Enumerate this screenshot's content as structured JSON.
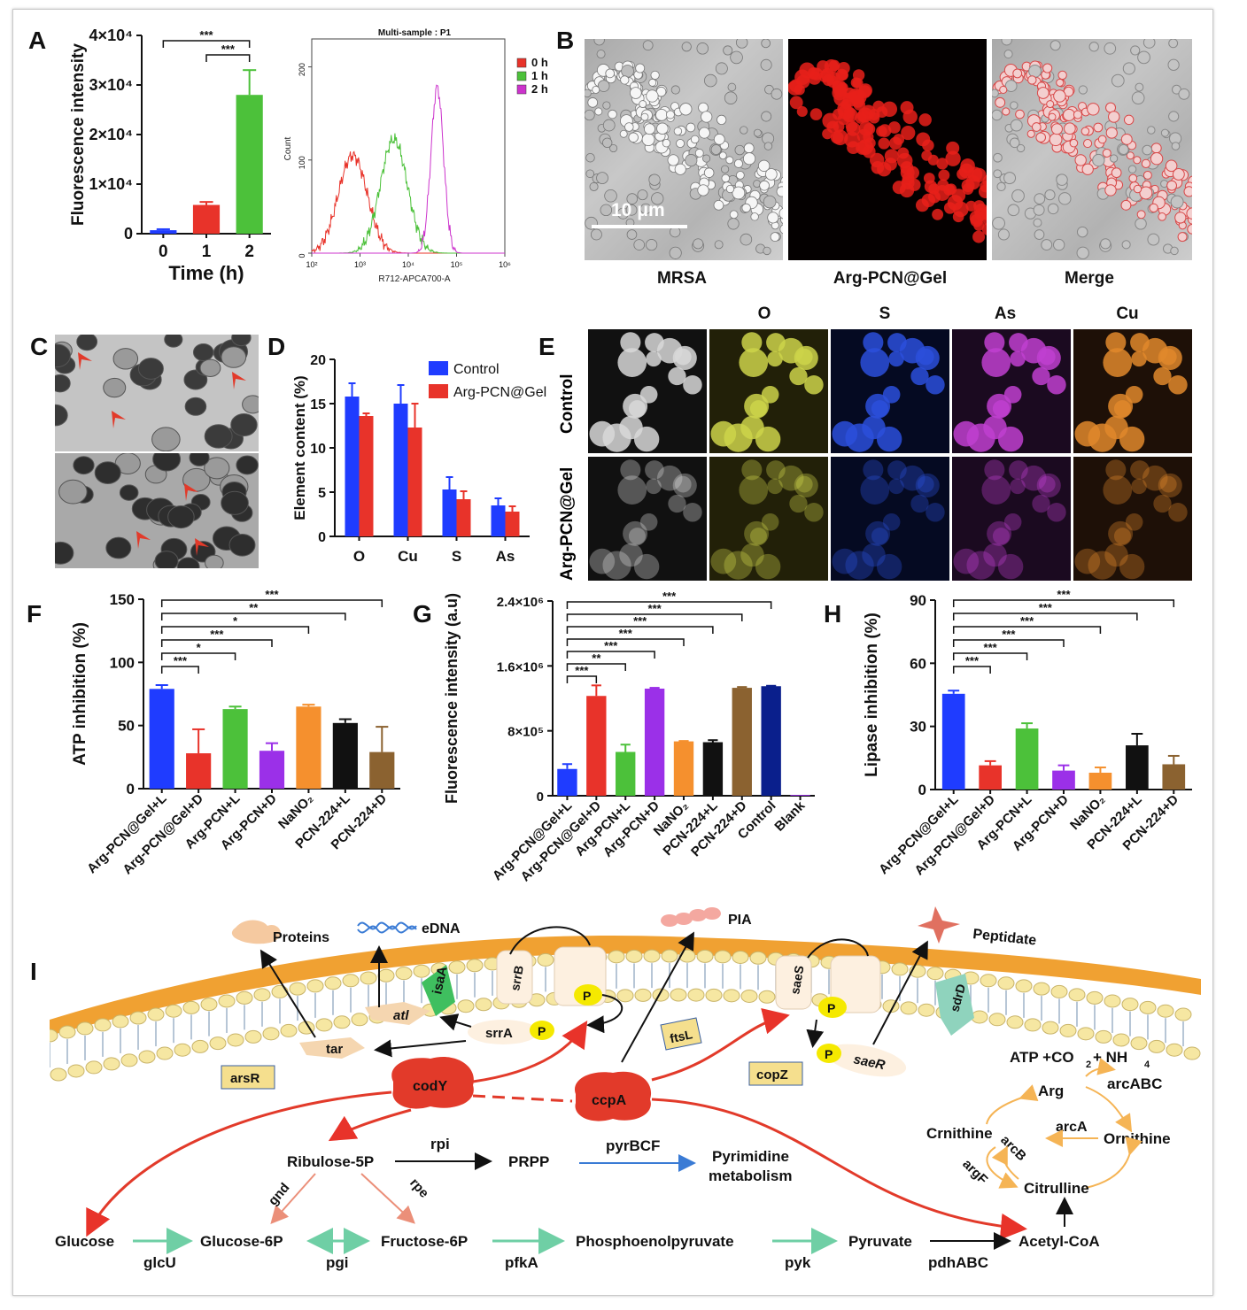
{
  "panels": {
    "A": "A",
    "B": "B",
    "C": "C",
    "D": "D",
    "E": "E",
    "F": "F",
    "G": "G",
    "H": "H",
    "I": "I"
  },
  "panelA_bar": {
    "chart_data": {
      "type": "bar",
      "categories": [
        "0",
        "1",
        "2"
      ],
      "values": [
        700,
        5800,
        28000
      ],
      "errors": [
        200,
        600,
        5000
      ],
      "colors": [
        "#1f3cff",
        "#e8332a",
        "#4cc13a"
      ],
      "ylim": [
        0,
        40000
      ],
      "yticks": [
        "0",
        "1×10⁴",
        "2×10⁴",
        "3×10⁴",
        "4×10⁴"
      ],
      "ylabel": "Fluorescence intensity",
      "xlabel": "Time (h)",
      "significance": [
        "***",
        "***"
      ]
    }
  },
  "panelA_hist": {
    "chart_data": {
      "type": "line",
      "title": "Multi-sample : P1",
      "xlabel": "R712-APCA700-A",
      "ylabel": "Count",
      "xticks": [
        "10²",
        "10³",
        "10⁴",
        "10⁵",
        "10⁶"
      ],
      "yticks": [
        "0",
        "100",
        "200"
      ],
      "series": [
        {
          "name": "0 h",
          "color": "#e8332a",
          "peak_x": "≈7×10²",
          "peak_count": 105
        },
        {
          "name": "1 h",
          "color": "#4cc13a",
          "peak_x": "≈5×10³",
          "peak_count": 122
        },
        {
          "name": "2 h",
          "color": "#cc33cc",
          "peak_x": "≈4×10⁴",
          "peak_count": 178
        }
      ]
    }
  },
  "panelB": {
    "scale_bar": "10 μm",
    "captions": [
      "MRSA",
      "Arg-PCN@Gel",
      "Merge"
    ]
  },
  "panelD": {
    "chart_data": {
      "type": "bar",
      "categories": [
        "O",
        "Cu",
        "S",
        "As"
      ],
      "series": [
        {
          "name": "Control",
          "color": "#1f3cff",
          "values": [
            15.8,
            15.0,
            5.3,
            3.5
          ],
          "errors": [
            1.5,
            2.1,
            1.4,
            0.8
          ]
        },
        {
          "name": "Arg-PCN@Gel",
          "color": "#e8332a",
          "values": [
            13.6,
            12.3,
            4.2,
            2.8
          ],
          "errors": [
            0.3,
            2.7,
            0.9,
            0.6
          ]
        }
      ],
      "ylim": [
        0,
        20
      ],
      "yticks": [
        "0",
        "5",
        "10",
        "15",
        "20"
      ],
      "ylabel": "Element content (%)"
    }
  },
  "panelE": {
    "columns": [
      "O",
      "S",
      "As",
      "Cu"
    ],
    "rows": [
      "Control",
      "Arg-PCN@Gel"
    ]
  },
  "panelF": {
    "chart_data": {
      "type": "bar",
      "categories": [
        "Arg-PCN@Gel+L",
        "Arg-PCN@Gel+D",
        "Arg-PCN+L",
        "Arg-PCN+D",
        "NaNO₂",
        "PCN-224+L",
        "PCN-224+D"
      ],
      "values": [
        79,
        28,
        63,
        30,
        65,
        52,
        29
      ],
      "errors": [
        3,
        19,
        2,
        6,
        1.5,
        3,
        20
      ],
      "colors": [
        "#1f3cff",
        "#e8332a",
        "#4cc13a",
        "#9b30e8",
        "#f5902e",
        "#111111",
        "#8b6230"
      ],
      "ylim": [
        0,
        150
      ],
      "yticks": [
        "0",
        "50",
        "100",
        "150"
      ],
      "ylabel": "ATP inhibition (%)",
      "significance": [
        "***",
        "*",
        "***",
        "*",
        "**",
        "***"
      ]
    }
  },
  "panelG": {
    "chart_data": {
      "type": "bar",
      "categories": [
        "Arg-PCN@Gel+L",
        "Arg-PCN@Gel+D",
        "Arg-PCN+L",
        "Arg-PCN+D",
        "NaNO₂",
        "PCN-224+L",
        "PCN-224+D",
        "Control",
        "Blank"
      ],
      "values": [
        330000,
        1230000,
        540000,
        1320000,
        670000,
        660000,
        1330000,
        1350000,
        10000
      ],
      "errors": [
        60000,
        130000,
        90000,
        10000,
        5000,
        25000,
        10000,
        5000,
        0
      ],
      "colors": [
        "#1f3cff",
        "#e8332a",
        "#4cc13a",
        "#9b30e8",
        "#f5902e",
        "#111111",
        "#8b6230",
        "#0a1f8c",
        "#9b30e8"
      ],
      "ylim": [
        0,
        2400000
      ],
      "yticks": [
        "0",
        "8×10⁵",
        "1.6×10⁶",
        "2.4×10⁶"
      ],
      "ylabel": "Fluorescence intensity (a.u)",
      "significance": [
        "***",
        "**",
        "***",
        "***",
        "***",
        "***",
        "***"
      ]
    }
  },
  "panelH": {
    "chart_data": {
      "type": "bar",
      "categories": [
        "Arg-PCN@Gel+L",
        "Arg-PCN@Gel+D",
        "Arg-PCN+L",
        "Arg-PCN+D",
        "NaNO₂",
        "PCN-224+L",
        "PCN-224+D"
      ],
      "values": [
        45.5,
        11.5,
        29,
        9,
        8,
        21,
        12
      ],
      "errors": [
        1.5,
        2,
        2.5,
        2.5,
        2.5,
        5.5,
        4
      ],
      "colors": [
        "#1f3cff",
        "#e8332a",
        "#4cc13a",
        "#9b30e8",
        "#f5902e",
        "#111111",
        "#8b6230"
      ],
      "ylim": [
        0,
        90
      ],
      "yticks": [
        "0",
        "30",
        "60",
        "90"
      ],
      "ylabel": "Lipase inhibition (%)",
      "significance": [
        "***",
        "***",
        "***",
        "***",
        "***",
        "***"
      ]
    }
  },
  "panelI": {
    "outputs": {
      "proteins": "Proteins",
      "edna": "eDNA",
      "pia": "PIA",
      "peptidate": "Peptidate"
    },
    "membrane": {
      "isaA": "isaA",
      "srrB": "srrB",
      "saeS": "saeS",
      "sdrD": "sdrD",
      "atl": "atl",
      "tar": "tar",
      "srrA": "srrA",
      "saeR": "saeR",
      "ftsL": "ftsL",
      "arsR": "arsR",
      "copZ": "copZ",
      "P": "P"
    },
    "regulators": {
      "codY": "codY",
      "ccpA": "ccpA"
    },
    "metabolism": {
      "ribulose": "Ribulose-5P",
      "rpi": "rpi",
      "prpp": "PRPP",
      "pyrBCF": "pyrBCF",
      "pyr1": "Pyrimidine",
      "pyr2": "metabolism",
      "gnd": "gnd",
      "rpe": "rpe",
      "glucose": "Glucose",
      "glcU": "glcU",
      "g6p": "Glucose-6P",
      "pgi": "pgi",
      "f6p": "Fructose-6P",
      "pfkA": "pfkA",
      "pep": "Phosphoenolpyruvate",
      "pyk": "pyk",
      "pyruvate": "Pyruvate",
      "pdhABC": "pdhABC",
      "acetyl": "Acetyl-CoA"
    },
    "arginine": {
      "atp": "ATP +CO",
      "atp2": "+ NH",
      "sub2": "2",
      "sub4": "4",
      "arg": "Arg",
      "arcABC": "arcABC",
      "arcA": "arcA",
      "ornithine": "Ornithine",
      "crnithine": "Crnithine",
      "arcB": "arcB",
      "argF": "argF",
      "citrulline": "Citrulline"
    }
  }
}
